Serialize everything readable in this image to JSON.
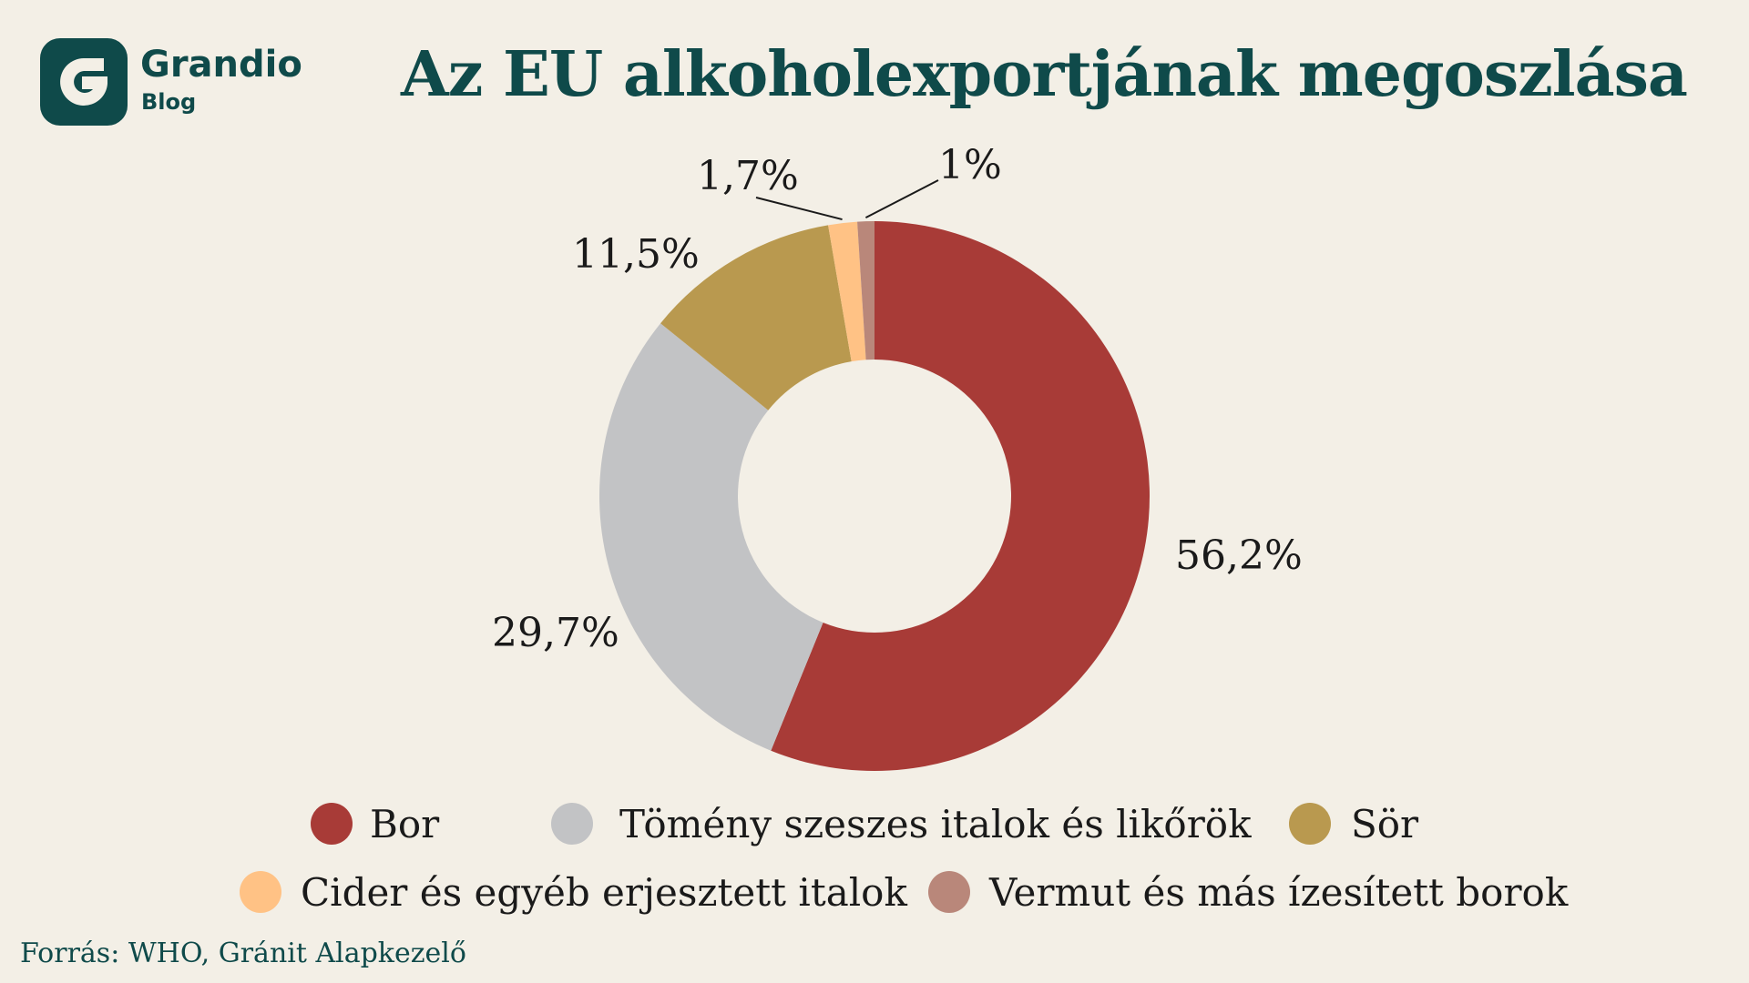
{
  "brand": {
    "name": "Grandio",
    "sub": "Blog",
    "color": "#0f4a4a",
    "icon": "grandio-g-logo-icon"
  },
  "source": "Forrás: WHO, Gránit Alapkezelő",
  "chart_data": {
    "type": "pie",
    "title": "Az EU alkoholexportjának megoszlása",
    "donut": true,
    "legend_position": "bottom",
    "categories": [
      "Bor",
      "Tömény szeszes italok és likőrök",
      "Sör",
      "Cider és egyéb erjesztett italok",
      "Vermut és más ízesített borok"
    ],
    "values": [
      56.2,
      29.7,
      11.5,
      1.7,
      1.0
    ],
    "labels": [
      "56,2%",
      "29,7%",
      "11,5%",
      "1,7%",
      "1%"
    ],
    "colors": [
      "#a83b37",
      "#c2c3c5",
      "#b9994f",
      "#ffc285",
      "#b9877a"
    ]
  }
}
